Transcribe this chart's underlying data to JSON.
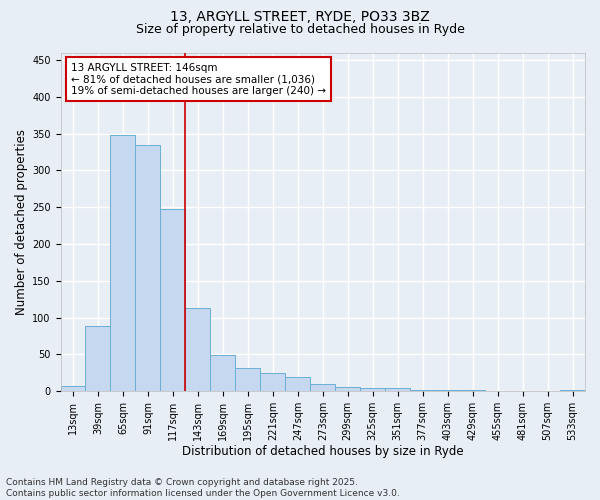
{
  "title_line1": "13, ARGYLL STREET, RYDE, PO33 3BZ",
  "title_line2": "Size of property relative to detached houses in Ryde",
  "xlabel": "Distribution of detached houses by size in Ryde",
  "ylabel": "Number of detached properties",
  "categories": [
    "13sqm",
    "39sqm",
    "65sqm",
    "91sqm",
    "117sqm",
    "143sqm",
    "169sqm",
    "195sqm",
    "221sqm",
    "247sqm",
    "273sqm",
    "299sqm",
    "325sqm",
    "351sqm",
    "377sqm",
    "403sqm",
    "429sqm",
    "455sqm",
    "481sqm",
    "507sqm",
    "533sqm"
  ],
  "values": [
    7,
    88,
    348,
    335,
    248,
    113,
    49,
    32,
    25,
    20,
    10,
    6,
    4,
    4,
    2,
    1,
    1,
    0,
    0,
    0,
    1
  ],
  "bar_color": "#c5d8ef",
  "bar_edge_color": "#6baed6",
  "highlight_bar_index": 5,
  "highlight_line_color": "#cc0000",
  "annotation_text": "13 ARGYLL STREET: 146sqm\n← 81% of detached houses are smaller (1,036)\n19% of semi-detached houses are larger (240) →",
  "annotation_box_color": "#ffffff",
  "annotation_box_edge_color": "#cc0000",
  "ylim": [
    0,
    460
  ],
  "yticks": [
    0,
    50,
    100,
    150,
    200,
    250,
    300,
    350,
    400,
    450
  ],
  "background_color": "#e8eef5",
  "grid_color": "#ffffff",
  "footer_line1": "Contains HM Land Registry data © Crown copyright and database right 2025.",
  "footer_line2": "Contains public sector information licensed under the Open Government Licence v3.0.",
  "title_fontsize": 10,
  "subtitle_fontsize": 9,
  "axis_label_fontsize": 8.5,
  "tick_fontsize": 7,
  "annotation_fontsize": 7.5,
  "footer_fontsize": 6.5
}
